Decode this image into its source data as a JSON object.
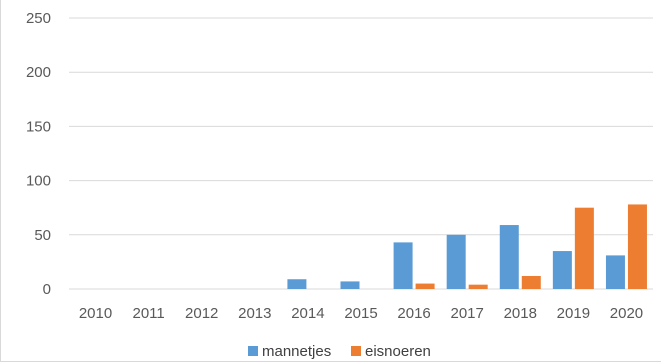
{
  "chart_data": {
    "type": "bar",
    "categories": [
      "2010",
      "2011",
      "2012",
      "2013",
      "2014",
      "2015",
      "2016",
      "2017",
      "2018",
      "2019",
      "2020"
    ],
    "series": [
      {
        "name": "mannetjes",
        "values": [
          0,
          0,
          0,
          0,
          9,
          7,
          43,
          50,
          59,
          35,
          31
        ]
      },
      {
        "name": "eisnoeren",
        "values": [
          0,
          0,
          0,
          0,
          0,
          0,
          5,
          4,
          12,
          75,
          78
        ]
      }
    ],
    "ylim": [
      0,
      250
    ],
    "yticks": [
      0,
      50,
      100,
      150,
      200,
      250
    ],
    "grid": true,
    "legend_position": "bottom",
    "colors": {
      "mannetjes": "#5b9bd5",
      "eisnoeren": "#ed7d31",
      "gridline": "#d9d9d9",
      "text": "#595959"
    }
  }
}
